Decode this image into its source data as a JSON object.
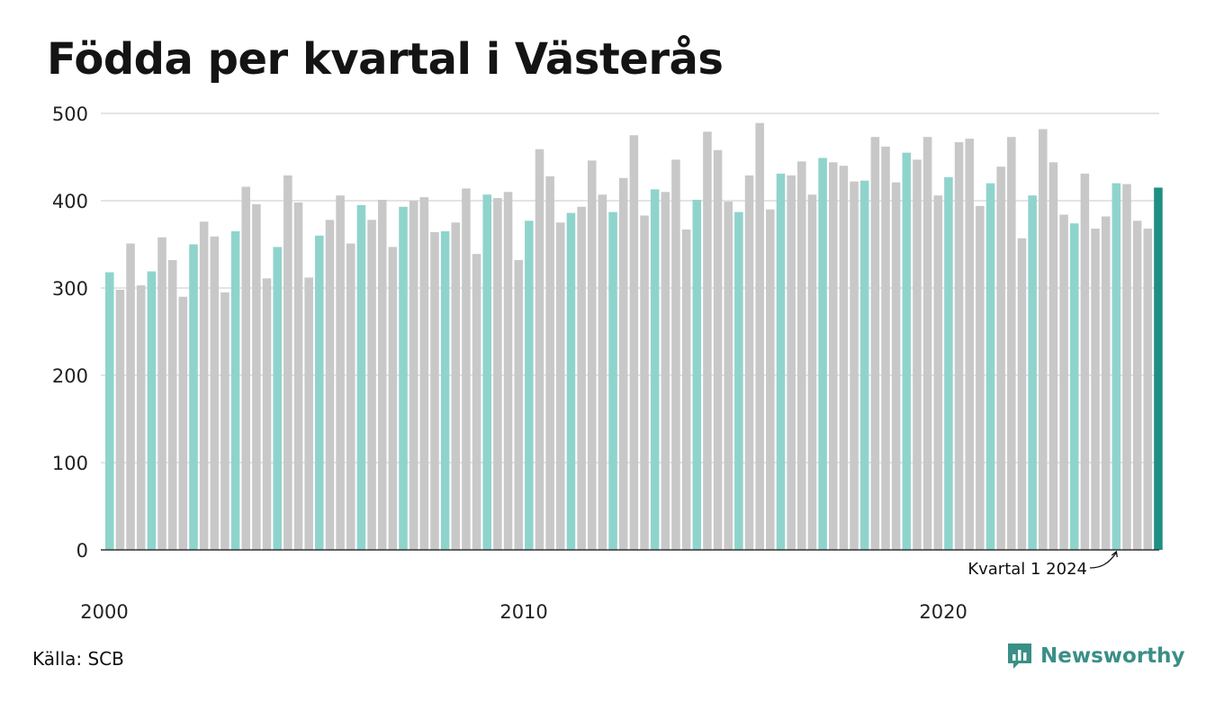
{
  "title": "Födda per kvartal i Västerås",
  "source": "Källa: SCB",
  "brand": {
    "name": "Newsworthy",
    "icon": "newsworthy-logo-icon"
  },
  "colors": {
    "q1": "#8fd4cc",
    "other": "#c8c8c8",
    "latest": "#1f8f82",
    "grid": "#dcdcdc",
    "axis": "#333333",
    "brand": "#3a8f86"
  },
  "chart_data": {
    "type": "bar",
    "start": "2000 Q1",
    "y_ticks": [
      0,
      100,
      200,
      300,
      400,
      500
    ],
    "ylim": [
      0,
      500
    ],
    "x_ticks": [
      {
        "label": "2000",
        "index": 0
      },
      {
        "label": "2010",
        "index": 40
      },
      {
        "label": "2020",
        "index": 80
      }
    ],
    "annotation": {
      "text": "Kvartal 1 2024",
      "index": 96
    },
    "values": [
      318,
      298,
      351,
      303,
      319,
      358,
      332,
      290,
      350,
      376,
      359,
      295,
      365,
      416,
      396,
      311,
      347,
      429,
      398,
      312,
      360,
      378,
      406,
      351,
      395,
      378,
      401,
      347,
      393,
      400,
      404,
      364,
      365,
      375,
      414,
      339,
      407,
      403,
      410,
      332,
      377,
      459,
      428,
      375,
      386,
      393,
      446,
      407,
      387,
      426,
      475,
      383,
      413,
      410,
      447,
      367,
      401,
      479,
      458,
      399,
      387,
      429,
      489,
      390,
      431,
      429,
      445,
      407,
      449,
      444,
      440,
      422,
      423,
      473,
      462,
      421,
      455,
      447,
      473,
      406,
      427,
      467,
      471,
      394,
      420,
      439,
      473,
      357,
      406,
      482,
      444,
      384,
      374,
      431,
      368,
      382,
      420,
      419,
      377,
      368,
      415
    ]
  }
}
